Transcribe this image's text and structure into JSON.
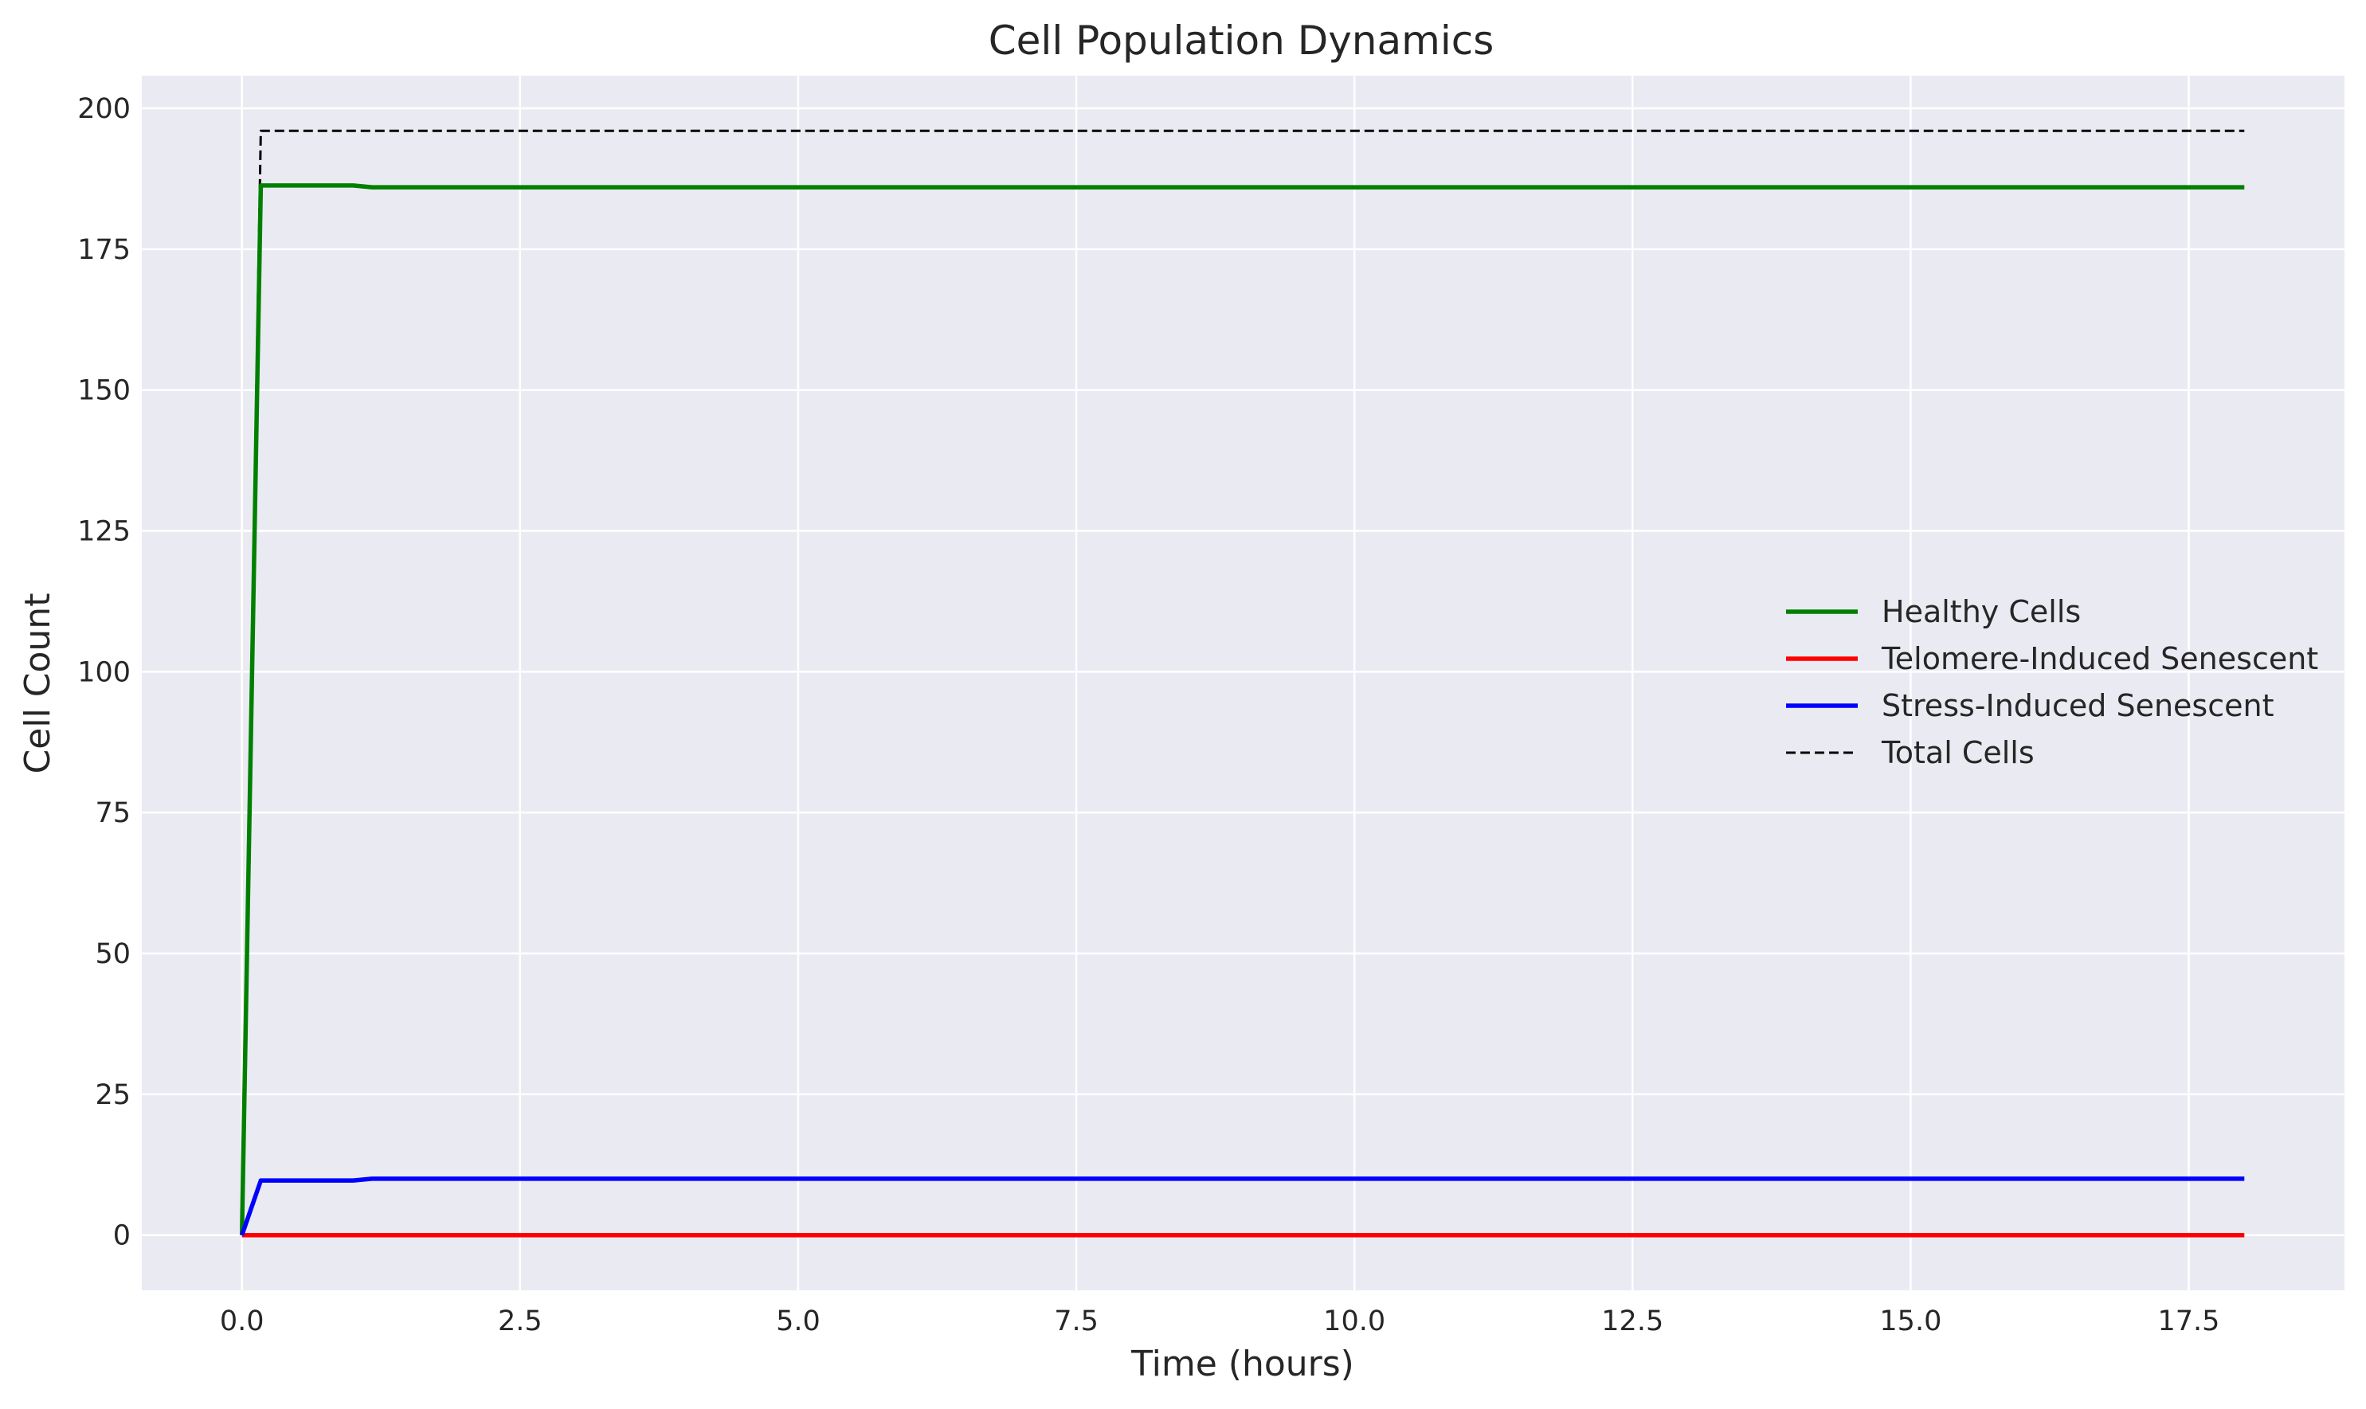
{
  "chart_data": {
    "type": "line",
    "title": "Cell Population Dynamics",
    "xlabel": "Time (hours)",
    "ylabel": "Cell Count",
    "xlim": [
      -0.9,
      18.9
    ],
    "ylim": [
      -9.8,
      205.8
    ],
    "xticks": [
      0.0,
      2.5,
      5.0,
      7.5,
      10.0,
      12.5,
      15.0,
      17.5
    ],
    "xtick_labels": [
      "0.0",
      "2.5",
      "5.0",
      "7.5",
      "10.0",
      "12.5",
      "15.0",
      "17.5"
    ],
    "yticks": [
      0,
      25,
      50,
      75,
      100,
      125,
      150,
      175,
      200
    ],
    "ytick_labels": [
      "0",
      "25",
      "50",
      "75",
      "100",
      "125",
      "150",
      "175",
      "200"
    ],
    "grid": true,
    "legend_position": "center-right",
    "background": "#eaeaf2",
    "series": [
      {
        "name": "Healthy Cells",
        "color": "#008000",
        "style": "solid",
        "x": [
          0.0,
          0.17,
          1.0,
          1.17,
          18.0
        ],
        "y": [
          0,
          186.3,
          186.3,
          186.0,
          186.0
        ]
      },
      {
        "name": "Telomere-Induced Senescent",
        "color": "#ff0000",
        "style": "solid",
        "x": [
          0.0,
          18.0
        ],
        "y": [
          0,
          0
        ]
      },
      {
        "name": "Stress-Induced Senescent",
        "color": "#0000ff",
        "style": "solid",
        "x": [
          0.0,
          0.17,
          1.0,
          1.17,
          18.0
        ],
        "y": [
          0,
          9.7,
          9.7,
          10.0,
          10.0
        ]
      },
      {
        "name": "Total Cells",
        "color": "#000000",
        "style": "dashed",
        "x": [
          0.0,
          0.17,
          18.0
        ],
        "y": [
          0,
          196,
          196
        ]
      }
    ]
  }
}
